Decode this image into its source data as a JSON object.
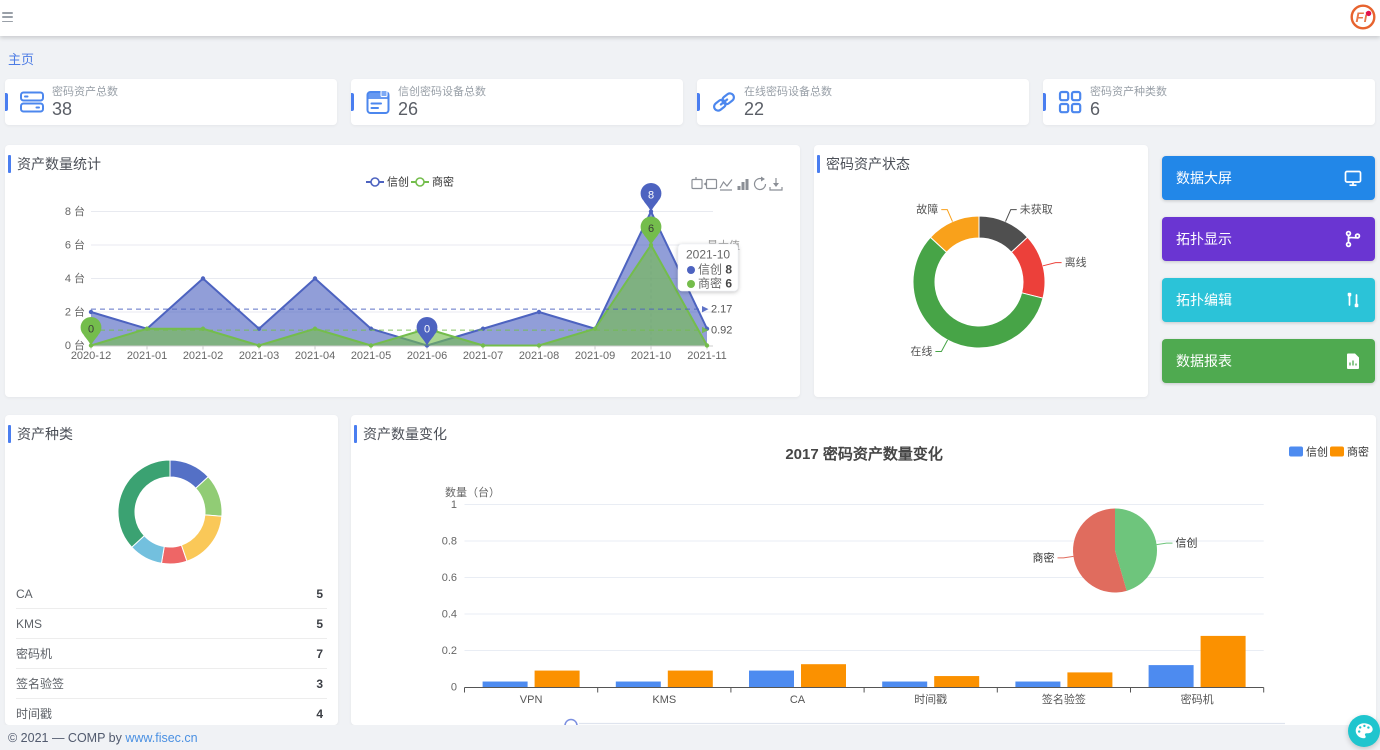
{
  "header": {
    "logo_text": "Fi"
  },
  "breadcrumb": {
    "home": "主页"
  },
  "stat_cards": [
    {
      "label": "密码资产总数",
      "value": "38",
      "icon": "server-icon"
    },
    {
      "label": "信创密码设备总数",
      "value": "26",
      "icon": "device-icon"
    },
    {
      "label": "在线密码设备总数",
      "value": "22",
      "icon": "link-icon"
    },
    {
      "label": "密码资产种类数",
      "value": "6",
      "icon": "grid-icon"
    }
  ],
  "panels": {
    "trend": {
      "title": "资产数量统计"
    },
    "status": {
      "title": "密码资产状态"
    },
    "types": {
      "title": "资产种类"
    },
    "change": {
      "title": "资产数量变化"
    }
  },
  "quick_actions": [
    {
      "label": "数据大屏",
      "color": "#2287e8",
      "icon": "monitor-icon"
    },
    {
      "label": "拓扑显示",
      "color": "#6a35d2",
      "icon": "topology-icon"
    },
    {
      "label": "拓扑编辑",
      "color": "#2bc3d8",
      "icon": "topology-edit-icon"
    },
    {
      "label": "数据报表",
      "color": "#4faa50",
      "icon": "report-icon"
    }
  ],
  "asset_type_list": [
    {
      "label": "CA",
      "value": "5"
    },
    {
      "label": "KMS",
      "value": "5"
    },
    {
      "label": "密码机",
      "value": "7"
    },
    {
      "label": "签名验签",
      "value": "3"
    },
    {
      "label": "时间戳",
      "value": "4"
    }
  ],
  "footer": {
    "copyright": "© 2021 — COMP by ",
    "link": "www.fisec.cn"
  },
  "chart_data": [
    {
      "id": "asset-trend",
      "type": "area",
      "x": [
        "2020-12",
        "2021-01",
        "2021-02",
        "2021-03",
        "2021-04",
        "2021-05",
        "2021-06",
        "2021-07",
        "2021-08",
        "2021-09",
        "2021-10",
        "2021-11"
      ],
      "y_labels": [
        "0 台",
        "2 台",
        "4 台",
        "6 台",
        "8 台"
      ],
      "ylim": [
        0,
        8
      ],
      "series": [
        {
          "name": "信创",
          "color": "#4d63c0",
          "values": [
            2,
            1,
            4,
            1,
            4,
            1,
            0,
            1,
            2,
            1,
            8,
            1
          ],
          "average": 2.17,
          "max_point": {
            "x": "2021-10",
            "value": 8
          },
          "min_point": {
            "x": "2021-06",
            "value": 0
          }
        },
        {
          "name": "商密",
          "color": "#74bd4c",
          "values": [
            0,
            1,
            1,
            0,
            1,
            0,
            1,
            0,
            0,
            1,
            6,
            0
          ],
          "average": 0.92,
          "max_point": {
            "x": "2021-10",
            "value": 6
          },
          "min_point": {
            "x": "2020-12",
            "value": 0
          }
        }
      ],
      "avg_labels": [
        "2.17",
        "0.92"
      ],
      "clipped_label": "最大值",
      "tooltip": {
        "title": "2021-10",
        "rows": [
          {
            "name": "信创",
            "value": "8"
          },
          {
            "name": "商密",
            "value": "6"
          }
        ]
      },
      "toolbox": [
        "zoom-select-icon",
        "zoom-reset-icon",
        "line-chart-icon",
        "bar-chart-icon",
        "restore-icon",
        "save-image-icon"
      ]
    },
    {
      "id": "asset-status",
      "type": "donut",
      "slices": [
        {
          "name": "未获取",
          "value": 5,
          "color": "#4f4f4f"
        },
        {
          "name": "离线",
          "value": 6,
          "color": "#ec403a"
        },
        {
          "name": "在线",
          "value": 22,
          "color": "#47a447"
        },
        {
          "name": "故障",
          "value": 5,
          "color": "#f9a11b"
        }
      ]
    },
    {
      "id": "asset-types",
      "type": "donut",
      "slices": [
        {
          "name": "CA",
          "value": 5,
          "color": "#5470c6"
        },
        {
          "name": "KMS",
          "value": 5,
          "color": "#91cc75"
        },
        {
          "name": "密码机",
          "value": 7,
          "color": "#fac858"
        },
        {
          "name": "签名验签",
          "value": 3,
          "color": "#ee6666"
        },
        {
          "name": "时间戳",
          "value": 4,
          "color": "#73c0de"
        },
        {
          "name": "VPN",
          "value": 14,
          "color": "#3ba272"
        }
      ]
    },
    {
      "id": "asset-change",
      "type": "bar",
      "title": "2017 密码资产数量变化",
      "ylabel": "数量（台）",
      "yticks": [
        "1",
        "0.8",
        "0.6",
        "0.4",
        "0.2",
        "0"
      ],
      "ylim": [
        0,
        1
      ],
      "categories": [
        "VPN",
        "KMS",
        "CA",
        "时间戳",
        "签名验签",
        "密码机"
      ],
      "series": [
        {
          "name": "信创",
          "color": "#4d8bf0",
          "values": [
            0.03,
            0.03,
            0.09,
            0.03,
            0.03,
            0.12
          ]
        },
        {
          "name": "商密",
          "color": "#fb9100",
          "values": [
            0.09,
            0.09,
            0.125,
            0.06,
            0.08,
            0.28
          ]
        }
      ],
      "inset_pie": {
        "slices": [
          {
            "name": "信创",
            "value": 45.5,
            "color": "#6ec57c"
          },
          {
            "name": "商密",
            "value": 54.5,
            "color": "#e06c5e"
          }
        ]
      }
    }
  ]
}
